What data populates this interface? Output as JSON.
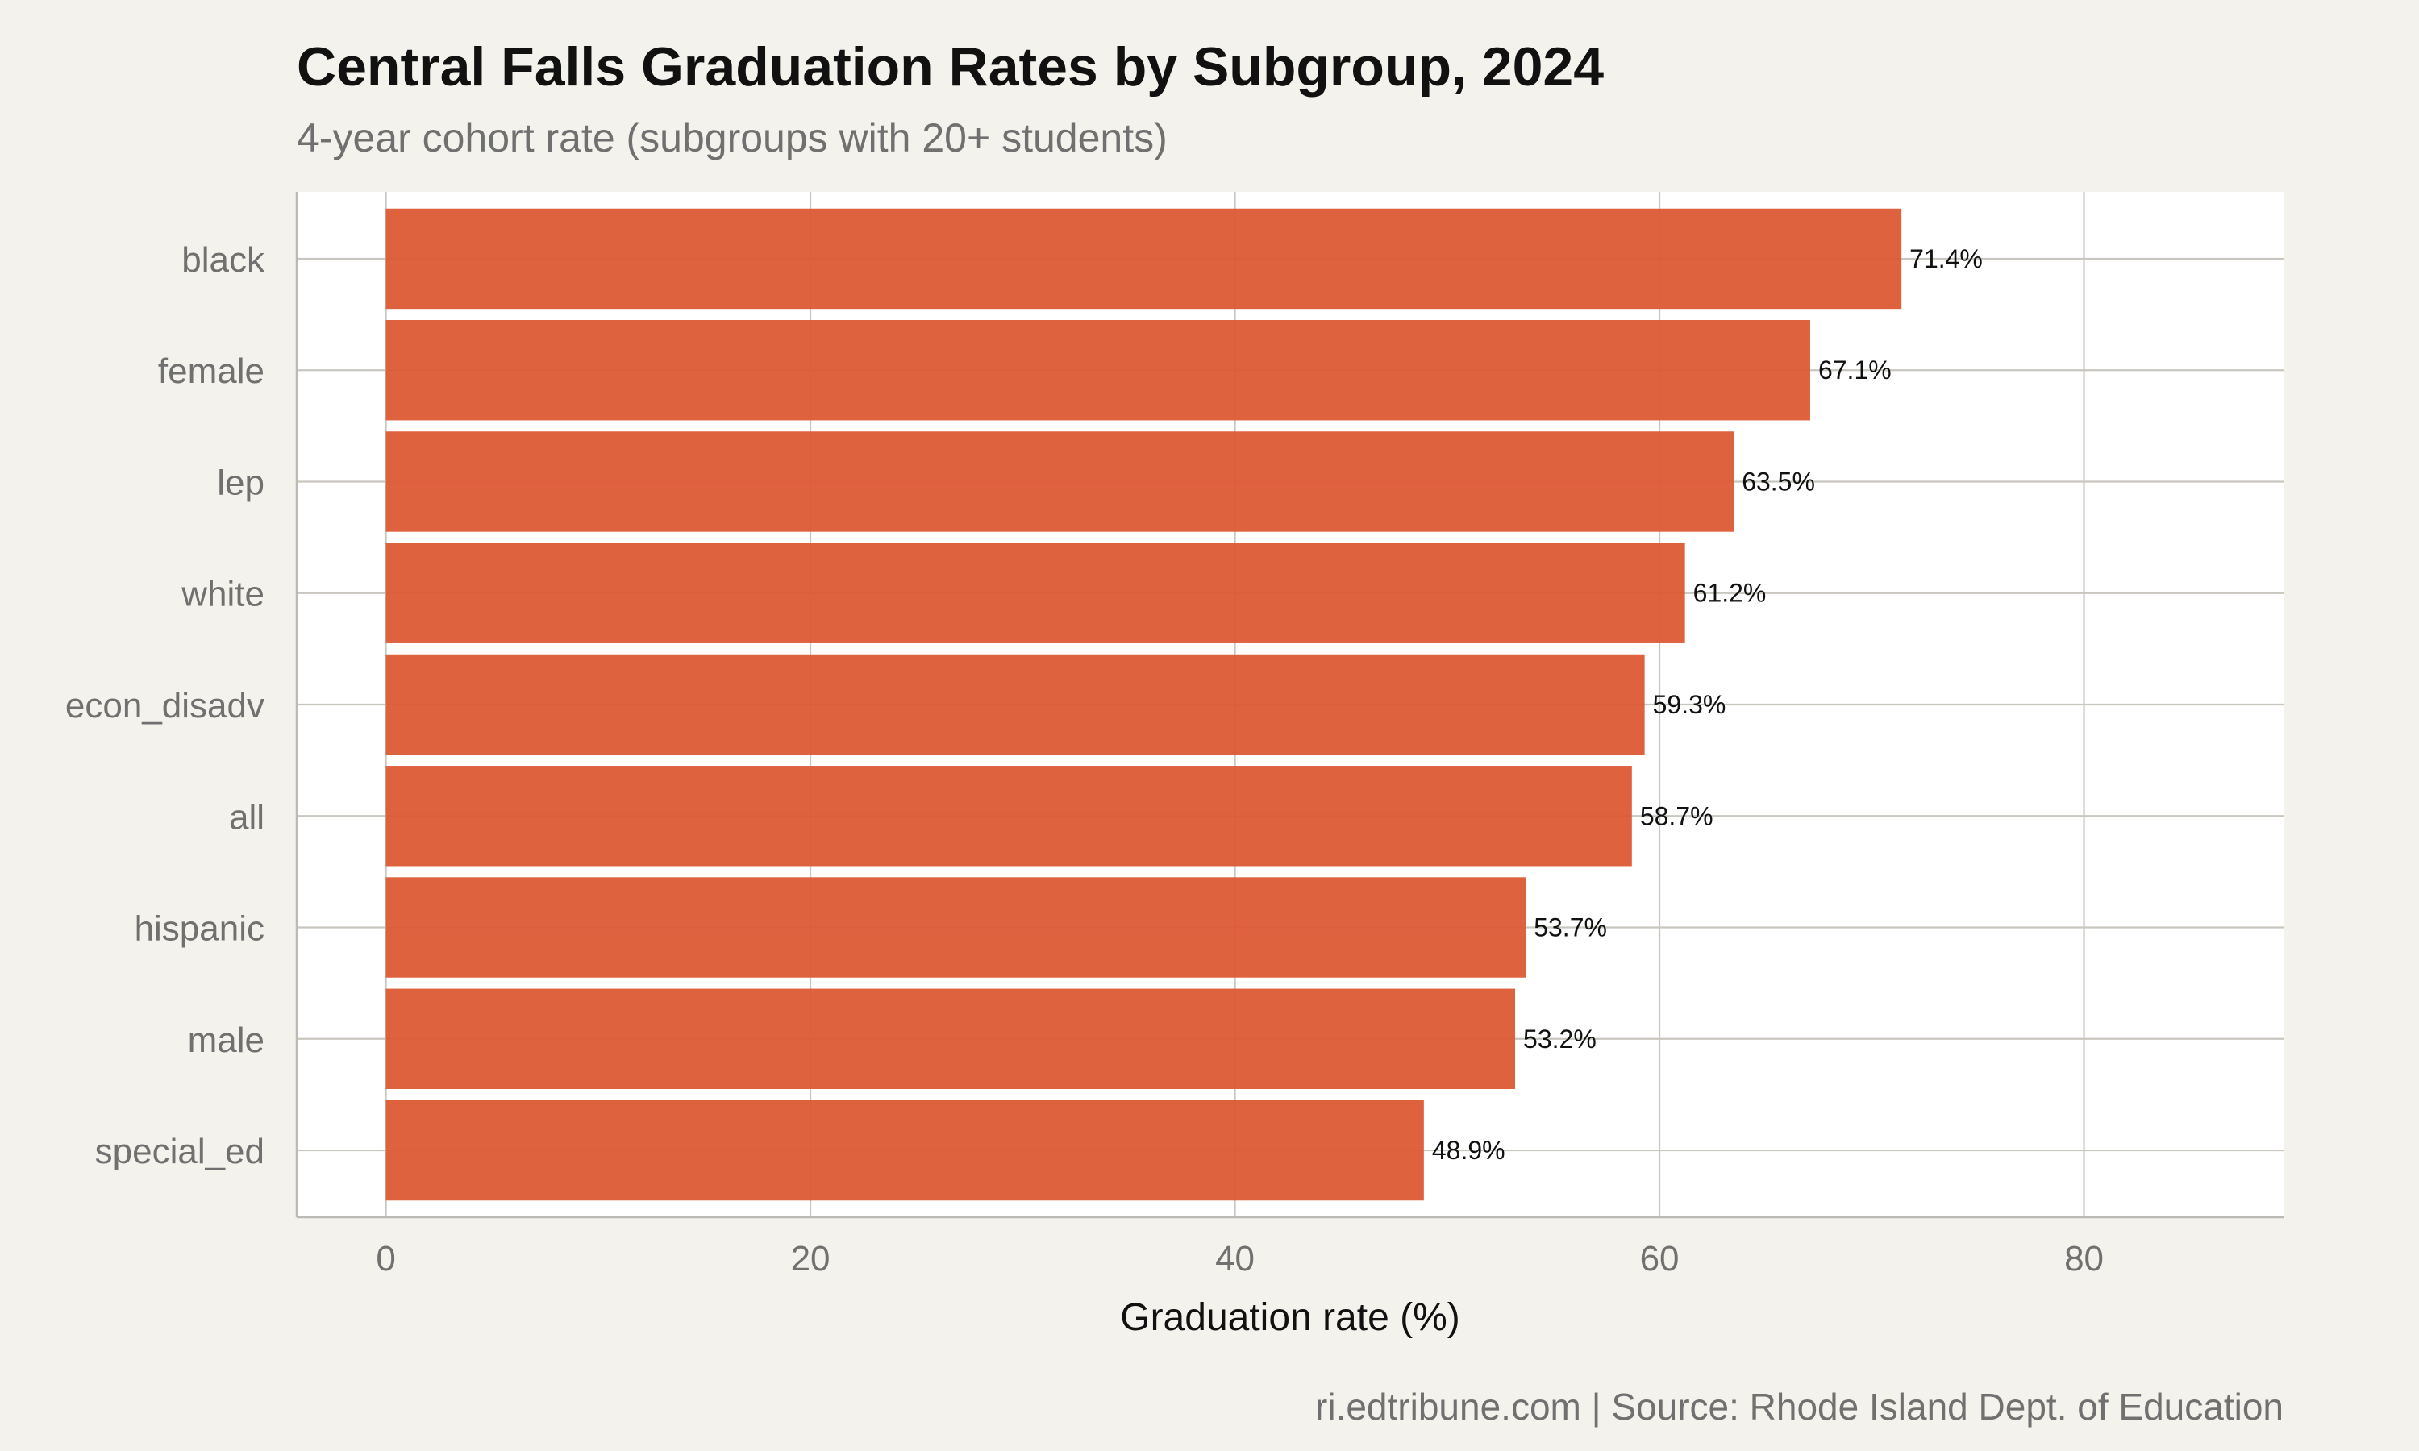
{
  "chart_data": {
    "type": "bar",
    "orientation": "horizontal",
    "title": "Central Falls Graduation Rates by Subgroup, 2024",
    "subtitle": "4-year cohort rate (subgroups with 20+ students)",
    "xlabel": "Graduation rate (%)",
    "ylabel": "",
    "caption": "ri.edtribune.com | Source: Rhode Island Dept. of Education",
    "categories": [
      "black",
      "female",
      "lep",
      "white",
      "econ_disadv",
      "all",
      "hispanic",
      "male",
      "special_ed"
    ],
    "values": [
      71.4,
      67.1,
      63.5,
      61.2,
      59.3,
      58.7,
      53.7,
      53.2,
      48.9
    ],
    "value_labels": [
      "71.4%",
      "67.1%",
      "63.5%",
      "61.2%",
      "59.3%",
      "58.7%",
      "53.7%",
      "53.2%",
      "48.9%"
    ],
    "xlim": [
      -4.2,
      89.4
    ],
    "xticks": [
      0,
      20,
      40,
      60,
      80
    ],
    "xtick_labels": [
      "0",
      "20",
      "40",
      "60",
      "80"
    ],
    "grid": true,
    "legend": "none",
    "bar_color": "#dd5a35",
    "panel_background": "#ffffff",
    "page_background": "#f4f2ed"
  }
}
